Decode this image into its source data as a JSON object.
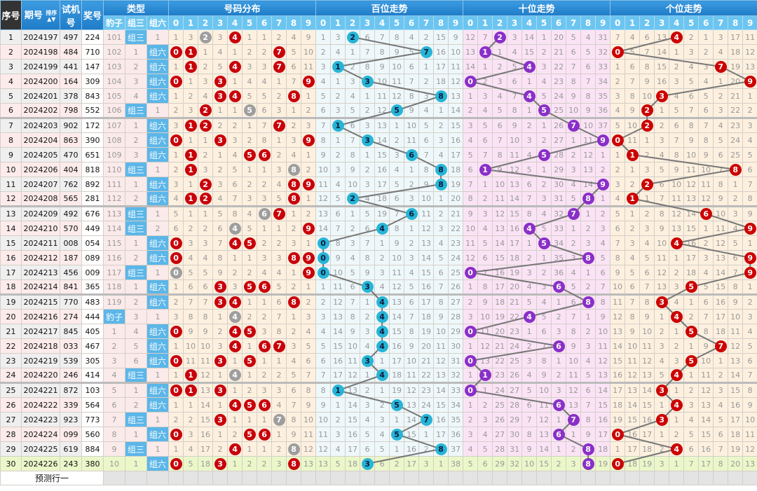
{
  "header": {
    "seq": "序号",
    "issue": "期号",
    "sort": "排序",
    "test": "试机号",
    "award": "奖号",
    "type": "类型",
    "dist": "号码分布",
    "bai": "百位走势",
    "shi": "十位走势",
    "ge": "个位走势",
    "type_labels": [
      "豹子",
      "组三",
      "组六"
    ],
    "digits": [
      "0",
      "1",
      "2",
      "3",
      "4",
      "5",
      "6",
      "7",
      "8",
      "9"
    ]
  },
  "rows": [
    {
      "seq": "1",
      "issue": "2024197",
      "test": "497",
      "award": "224"
    },
    {
      "seq": "2",
      "issue": "2024198",
      "test": "484",
      "award": "710"
    },
    {
      "seq": "3",
      "issue": "2024199",
      "test": "441",
      "award": "147"
    },
    {
      "seq": "4",
      "issue": "2024200",
      "test": "164",
      "award": "309"
    },
    {
      "seq": "5",
      "issue": "2024201",
      "test": "378",
      "award": "843"
    },
    {
      "seq": "6",
      "issue": "2024202",
      "test": "798",
      "award": "552"
    },
    {
      "seq": "7",
      "issue": "2024203",
      "test": "902",
      "award": "172"
    },
    {
      "seq": "8",
      "issue": "2024204",
      "test": "863",
      "award": "390"
    },
    {
      "seq": "9",
      "issue": "2024205",
      "test": "470",
      "award": "651"
    },
    {
      "seq": "10",
      "issue": "2024206",
      "test": "404",
      "award": "818"
    },
    {
      "seq": "11",
      "issue": "2024207",
      "test": "762",
      "award": "892"
    },
    {
      "seq": "12",
      "issue": "2024208",
      "test": "565",
      "award": "281"
    },
    {
      "seq": "13",
      "issue": "2024209",
      "test": "492",
      "award": "676"
    },
    {
      "seq": "14",
      "issue": "2024210",
      "test": "570",
      "award": "449"
    },
    {
      "seq": "15",
      "issue": "2024211",
      "test": "008",
      "award": "054"
    },
    {
      "seq": "16",
      "issue": "2024212",
      "test": "187",
      "award": "089"
    },
    {
      "seq": "17",
      "issue": "2024213",
      "test": "456",
      "award": "009"
    },
    {
      "seq": "18",
      "issue": "2024214",
      "test": "841",
      "award": "365"
    },
    {
      "seq": "19",
      "issue": "2024215",
      "test": "770",
      "award": "483"
    },
    {
      "seq": "20",
      "issue": "2024216",
      "test": "274",
      "award": "444"
    },
    {
      "seq": "21",
      "issue": "2024217",
      "test": "845",
      "award": "405"
    },
    {
      "seq": "22",
      "issue": "2024218",
      "test": "033",
      "award": "467"
    },
    {
      "seq": "23",
      "issue": "2024219",
      "test": "539",
      "award": "305"
    },
    {
      "seq": "24",
      "issue": "2024220",
      "test": "246",
      "award": "414"
    },
    {
      "seq": "25",
      "issue": "2024221",
      "test": "872",
      "award": "103"
    },
    {
      "seq": "26",
      "issue": "2024222",
      "test": "339",
      "award": "564"
    },
    {
      "seq": "27",
      "issue": "2024223",
      "test": "923",
      "award": "773"
    },
    {
      "seq": "28",
      "issue": "2024224",
      "test": "099",
      "award": "560"
    },
    {
      "seq": "29",
      "issue": "2024225",
      "test": "619",
      "award": "884"
    },
    {
      "seq": "30",
      "issue": "2024226",
      "test": "243",
      "award": "380"
    }
  ],
  "first_row_misses": {
    "type": [
      101,
      null,
      1
    ],
    "dist": [
      1,
      3,
      null,
      3,
      null,
      1,
      1,
      2,
      4,
      9
    ],
    "bai": [
      1,
      3,
      null,
      6,
      7,
      8,
      4,
      2,
      15,
      9
    ],
    "shi": [
      12,
      7,
      null,
      3,
      14,
      1,
      20,
      5,
      4,
      31
    ],
    "ge": [
      7,
      4,
      6,
      13,
      null,
      2,
      1,
      3,
      17,
      11
    ]
  },
  "prediction_label": "预测行一",
  "colors": {
    "dist_ball": "#c8000a",
    "repeat_ball": "#9e9e9e",
    "bai_ball": "#27b5d6",
    "shi_ball": "#8a2fc8",
    "ge_ball": "#cc0000",
    "type_hit": "#5cb6e8",
    "latest_row": "#ebf7c9",
    "header": "#2a8ad4"
  }
}
